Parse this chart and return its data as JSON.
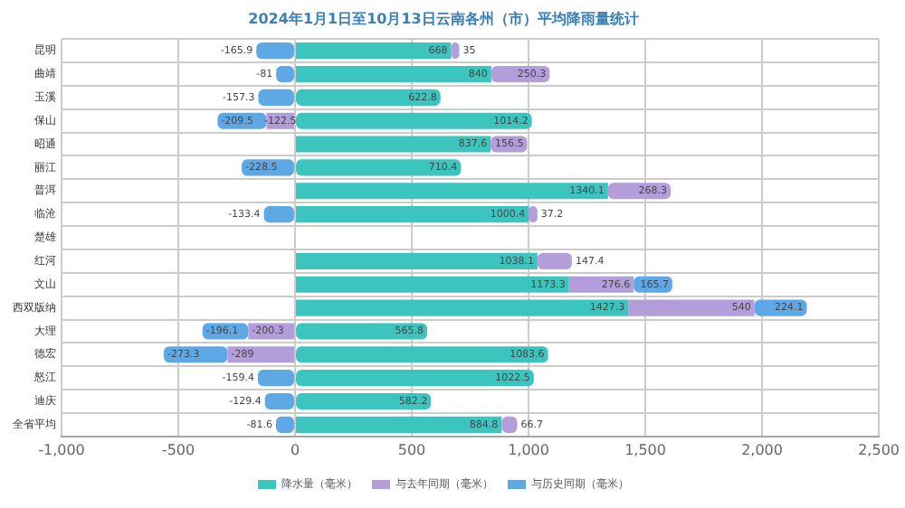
{
  "chart_data": {
    "type": "bar",
    "orientation": "horizontal",
    "stacked": true,
    "title": "2024年1月1日至10月13日云南各州（市）平均降雨量统计",
    "categories": [
      "昆明",
      "曲靖",
      "玉溪",
      "保山",
      "昭通",
      "丽江",
      "普洱",
      "临沧",
      "楚雄",
      "红河",
      "文山",
      "西双版纳",
      "大理",
      "德宏",
      "怒江",
      "迪庆",
      "全省平均"
    ],
    "series": [
      {
        "name": "降水量（毫米）",
        "color": "#3cc4bf",
        "values": [
          668,
          840,
          622.8,
          1014.2,
          837.6,
          710.4,
          1340.1,
          1000.4,
          null,
          1038.1,
          1173.3,
          1427.3,
          565.8,
          1083.6,
          1022.5,
          582.2,
          884.8
        ]
      },
      {
        "name": "与去年同期（毫米）",
        "color": "#b39ddb",
        "values": [
          35,
          250.3,
          null,
          -122.5,
          156.5,
          null,
          268.3,
          37.2,
          null,
          147.4,
          276.6,
          540,
          -200.3,
          -289,
          null,
          null,
          66.7
        ]
      },
      {
        "name": "与历史同期（毫米）",
        "color": "#5fa8e6",
        "values": [
          -165.9,
          -81,
          -157.3,
          -209.5,
          null,
          -228.5,
          null,
          -133.4,
          null,
          null,
          165.7,
          224.1,
          -196.1,
          -273.3,
          -159.4,
          -129.4,
          -81.6
        ]
      }
    ],
    "xlim": [
      -1000,
      2500
    ],
    "xticks": [
      {
        "value": -1000,
        "label": "-1,000"
      },
      {
        "value": -500,
        "label": "-500"
      },
      {
        "value": 0,
        "label": "0"
      },
      {
        "value": 500,
        "label": "500"
      },
      {
        "value": 1000,
        "label": "1,000"
      },
      {
        "value": 1500,
        "label": "1,500"
      },
      {
        "value": 2000,
        "label": "2,000"
      },
      {
        "value": 2500,
        "label": "2,500"
      }
    ],
    "grid": true,
    "legend": "bottom",
    "data_labels": true
  }
}
